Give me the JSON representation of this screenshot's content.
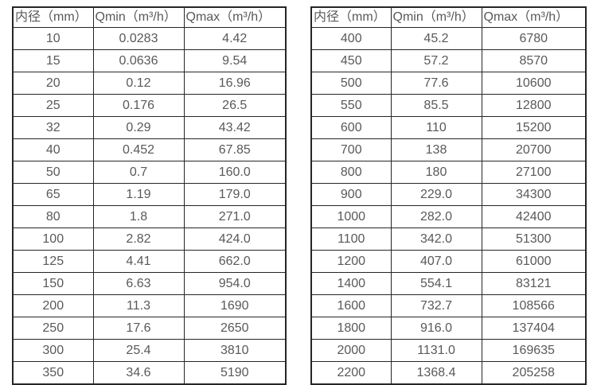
{
  "page": {
    "background_color": "#ffffff",
    "border_color": "#262626",
    "text_color": "#595959"
  },
  "chart_data": [
    {
      "type": "table",
      "columns": [
        "内径（mm）",
        "Qmin（m³/h）",
        "Qmax（m³/h）"
      ],
      "rows": [
        [
          "10",
          "0.0283",
          "4.42"
        ],
        [
          "15",
          "0.0636",
          "9.54"
        ],
        [
          "20",
          "0.12",
          "16.96"
        ],
        [
          "25",
          "0.176",
          "26.5"
        ],
        [
          "32",
          "0.29",
          "43.42"
        ],
        [
          "40",
          "0.452",
          "67.85"
        ],
        [
          "50",
          "0.7",
          "160.0"
        ],
        [
          "65",
          "1.19",
          "179.0"
        ],
        [
          "80",
          "1.8",
          "271.0"
        ],
        [
          "100",
          "2.82",
          "424.0"
        ],
        [
          "125",
          "4.41",
          "662.0"
        ],
        [
          "150",
          "6.63",
          "954.0"
        ],
        [
          "200",
          "11.3",
          "1690"
        ],
        [
          "250",
          "17.6",
          "2650"
        ],
        [
          "300",
          "25.4",
          "3810"
        ],
        [
          "350",
          "34.6",
          "5190"
        ]
      ]
    },
    {
      "type": "table",
      "columns": [
        "内径（mm）",
        "Qmin（m³/h）",
        "Qmax（m³/h）"
      ],
      "rows": [
        [
          "400",
          "45.2",
          "6780"
        ],
        [
          "450",
          "57.2",
          "8570"
        ],
        [
          "500",
          "77.6",
          "10600"
        ],
        [
          "550",
          "85.5",
          "12800"
        ],
        [
          "600",
          "110",
          "15200"
        ],
        [
          "700",
          "138",
          "20700"
        ],
        [
          "800",
          "180",
          "27100"
        ],
        [
          "900",
          "229.0",
          "34300"
        ],
        [
          "1000",
          "282.0",
          "42400"
        ],
        [
          "1100",
          "342.0",
          "51300"
        ],
        [
          "1200",
          "407.0",
          "61000"
        ],
        [
          "1400",
          "554.1",
          "83121"
        ],
        [
          "1600",
          "732.7",
          "108566"
        ],
        [
          "1800",
          "916.0",
          "137404"
        ],
        [
          "2000",
          "1131.0",
          "169635"
        ],
        [
          "2200",
          "1368.4",
          "205258"
        ]
      ]
    }
  ]
}
